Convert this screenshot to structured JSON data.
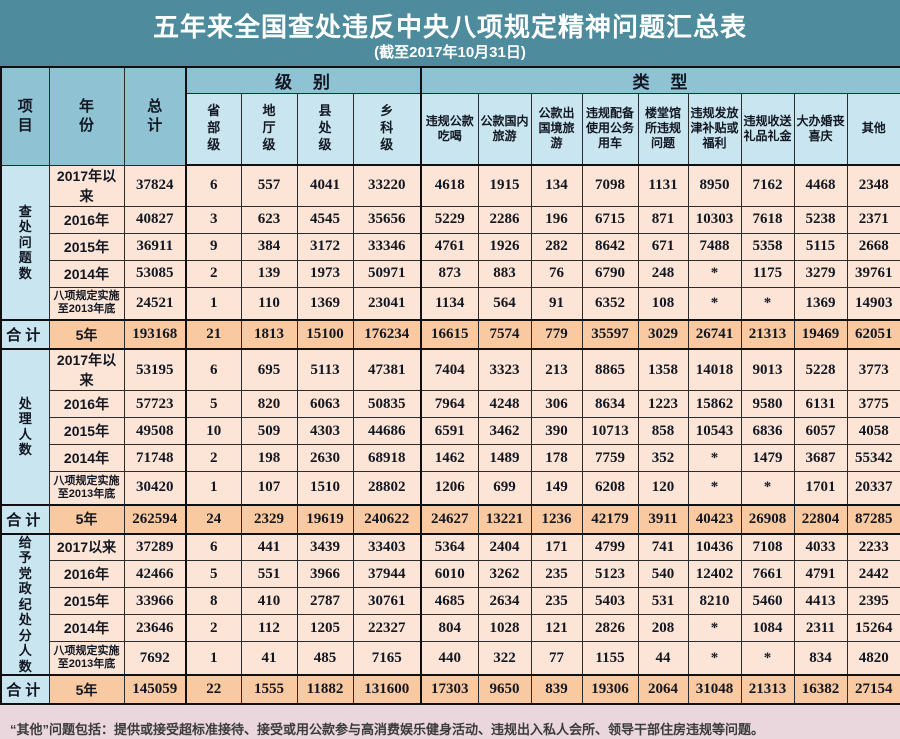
{
  "chart_data": {
    "type": "table",
    "title": "五年来全国查处违反中央八项规定精神问题汇总表",
    "subtitle": "(截至2017年10月31日)",
    "header": {
      "item": "项目",
      "year": "年份",
      "total": "总计",
      "level_group": "级　别",
      "type_group": "类　型",
      "level_cols": [
        "省部级",
        "地厅级",
        "县处级",
        "乡科级"
      ],
      "type_cols": [
        "违规公款吃喝",
        "公款国内旅游",
        "公款出国境旅游",
        "违规配备使用公务用车",
        "楼堂馆所违规问题",
        "违规发放津补贴或福利",
        "违规收送礼品礼金",
        "大办婚丧喜庆",
        "其他"
      ]
    },
    "sections": [
      {
        "label": "查处问题数",
        "rows": [
          {
            "year": "2017年以来",
            "values": [
              "37824",
              "6",
              "557",
              "4041",
              "33220",
              "4618",
              "1915",
              "134",
              "7098",
              "1131",
              "8950",
              "7162",
              "4468",
              "2348"
            ]
          },
          {
            "year": "2016年",
            "values": [
              "40827",
              "3",
              "623",
              "4545",
              "35656",
              "5229",
              "2286",
              "196",
              "6715",
              "871",
              "10303",
              "7618",
              "5238",
              "2371"
            ]
          },
          {
            "year": "2015年",
            "values": [
              "36911",
              "9",
              "384",
              "3172",
              "33346",
              "4761",
              "1926",
              "282",
              "8642",
              "671",
              "7488",
              "5358",
              "5115",
              "2668"
            ]
          },
          {
            "year": "2014年",
            "values": [
              "53085",
              "2",
              "139",
              "1973",
              "50971",
              "873",
              "883",
              "76",
              "6790",
              "248",
              "*",
              "1175",
              "3279",
              "39761"
            ]
          },
          {
            "year": "八项规定实施至2013年底",
            "values": [
              "24521",
              "1",
              "110",
              "1369",
              "23041",
              "1134",
              "564",
              "91",
              "6352",
              "108",
              "*",
              "*",
              "1369",
              "14903"
            ]
          }
        ],
        "total": {
          "label": "合计",
          "year": "5年",
          "values": [
            "193168",
            "21",
            "1813",
            "15100",
            "176234",
            "16615",
            "7574",
            "779",
            "35597",
            "3029",
            "26741",
            "21313",
            "19469",
            "62051"
          ]
        }
      },
      {
        "label": "处理人数",
        "rows": [
          {
            "year": "2017年以来",
            "values": [
              "53195",
              "6",
              "695",
              "5113",
              "47381",
              "7404",
              "3323",
              "213",
              "8865",
              "1358",
              "14018",
              "9013",
              "5228",
              "3773"
            ]
          },
          {
            "year": "2016年",
            "values": [
              "57723",
              "5",
              "820",
              "6063",
              "50835",
              "7964",
              "4248",
              "306",
              "8634",
              "1223",
              "15862",
              "9580",
              "6131",
              "3775"
            ]
          },
          {
            "year": "2015年",
            "values": [
              "49508",
              "10",
              "509",
              "4303",
              "44686",
              "6591",
              "3462",
              "390",
              "10713",
              "858",
              "10543",
              "6836",
              "6057",
              "4058"
            ]
          },
          {
            "year": "2014年",
            "values": [
              "71748",
              "2",
              "198",
              "2630",
              "68918",
              "1462",
              "1489",
              "178",
              "7759",
              "352",
              "*",
              "1479",
              "3687",
              "55342"
            ]
          },
          {
            "year": "八项规定实施至2013年底",
            "values": [
              "30420",
              "1",
              "107",
              "1510",
              "28802",
              "1206",
              "699",
              "149",
              "6208",
              "120",
              "*",
              "*",
              "1701",
              "20337"
            ]
          }
        ],
        "total": {
          "label": "合计",
          "year": "5年",
          "values": [
            "262594",
            "24",
            "2329",
            "19619",
            "240622",
            "24627",
            "13221",
            "1236",
            "42179",
            "3911",
            "40423",
            "26908",
            "22804",
            "87285"
          ]
        }
      },
      {
        "label": "给予党政纪处分人数",
        "rows": [
          {
            "year": "2017以来",
            "values": [
              "37289",
              "6",
              "441",
              "3439",
              "33403",
              "5364",
              "2404",
              "171",
              "4799",
              "741",
              "10436",
              "7108",
              "4033",
              "2233"
            ]
          },
          {
            "year": "2016年",
            "values": [
              "42466",
              "5",
              "551",
              "3966",
              "37944",
              "6010",
              "3262",
              "235",
              "5123",
              "540",
              "12402",
              "7661",
              "4791",
              "2442"
            ]
          },
          {
            "year": "2015年",
            "values": [
              "33966",
              "8",
              "410",
              "2787",
              "30761",
              "4685",
              "2634",
              "235",
              "5403",
              "531",
              "8210",
              "5460",
              "4413",
              "2395"
            ]
          },
          {
            "year": "2014年",
            "values": [
              "23646",
              "2",
              "112",
              "1205",
              "22327",
              "804",
              "1028",
              "121",
              "2826",
              "208",
              "*",
              "1084",
              "2311",
              "15264"
            ]
          },
          {
            "year": "八项规定实施至2013年底",
            "values": [
              "7692",
              "1",
              "41",
              "485",
              "7165",
              "440",
              "322",
              "77",
              "1155",
              "44",
              "*",
              "*",
              "834",
              "4820"
            ]
          }
        ],
        "total": {
          "label": "合计",
          "year": "5年",
          "values": [
            "145059",
            "22",
            "1555",
            "11882",
            "131600",
            "17303",
            "9650",
            "839",
            "19306",
            "2064",
            "31048",
            "21313",
            "16382",
            "27154"
          ]
        }
      }
    ],
    "footnote": "“其他”问题包括：提供或接受超标准接待、接受或用公款参与高消费娱乐健身活动、违规出入私人会所、领导干部住房违规等问题。",
    "colors": {
      "page_background": "#4e8c9d",
      "header_main": "#8fc2d3",
      "header_sub": "#c9e5ef",
      "data_cell": "#fce5d6",
      "total_cell": "#f9c9a1",
      "footnote_background": "#ead7dd",
      "title_text": "#ffffff"
    }
  }
}
